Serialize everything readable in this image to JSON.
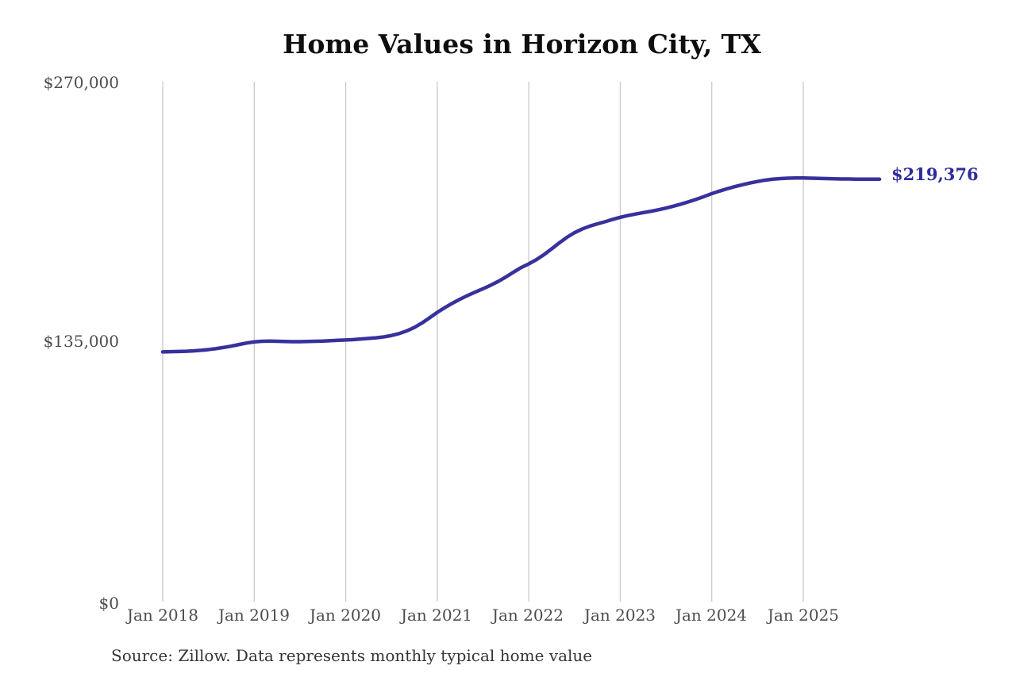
{
  "title": "Home Values in Horizon City, TX",
  "end_label": "$219,376",
  "source_note": "Source: Zillow. Data represents monthly typical home value",
  "y_axis": {
    "ticks": [
      "$270,000",
      "$135,000",
      "$0"
    ]
  },
  "x_axis": {
    "ticks": [
      "Jan 2018",
      "Jan 2019",
      "Jan 2020",
      "Jan 2021",
      "Jan 2022",
      "Jan 2023",
      "Jan 2024",
      "Jan 2025"
    ]
  },
  "colors": {
    "line": "#37319d",
    "end_label": "#2d2c9c",
    "gridline": "#c9c9c9",
    "title": "#0e0e0e",
    "tick_label": "#4f4b4c",
    "source_text": "#383436",
    "background": "#ffffff"
  },
  "chart_data": {
    "type": "line",
    "title": "Home Values in Horizon City, TX",
    "xlabel": "",
    "ylabel": "",
    "ylim": [
      0,
      270000
    ],
    "y_ticks": [
      0,
      135000,
      270000
    ],
    "y_tick_labels": [
      "$0",
      "$135,000",
      "$270,000"
    ],
    "x_tick_labels": [
      "Jan 2018",
      "Jan 2019",
      "Jan 2020",
      "Jan 2021",
      "Jan 2022",
      "Jan 2023",
      "Jan 2024",
      "Jan 2025"
    ],
    "grid": "vertical gridlines at each January, no horizontal gridlines",
    "legend": "none",
    "annotation": {
      "text": "$219,376",
      "attached_to": "last point"
    },
    "series": [
      {
        "name": "Monthly typical home value",
        "x": [
          "2018-01",
          "2018-02",
          "2018-03",
          "2018-04",
          "2018-05",
          "2018-06",
          "2018-07",
          "2018-08",
          "2018-09",
          "2018-10",
          "2018-11",
          "2018-12",
          "2019-01",
          "2019-02",
          "2019-03",
          "2019-04",
          "2019-05",
          "2019-06",
          "2019-07",
          "2019-08",
          "2019-09",
          "2019-10",
          "2019-11",
          "2019-12",
          "2020-01",
          "2020-02",
          "2020-03",
          "2020-04",
          "2020-05",
          "2020-06",
          "2020-07",
          "2020-08",
          "2020-09",
          "2020-10",
          "2020-11",
          "2020-12",
          "2021-01",
          "2021-02",
          "2021-03",
          "2021-04",
          "2021-05",
          "2021-06",
          "2021-07",
          "2021-08",
          "2021-09",
          "2021-10",
          "2021-11",
          "2021-12",
          "2022-01",
          "2022-02",
          "2022-03",
          "2022-04",
          "2022-05",
          "2022-06",
          "2022-07",
          "2022-08",
          "2022-09",
          "2022-10",
          "2022-11",
          "2022-12",
          "2023-01",
          "2023-02",
          "2023-03",
          "2023-04",
          "2023-05",
          "2023-06",
          "2023-07",
          "2023-08",
          "2023-09",
          "2023-10",
          "2023-11",
          "2023-12",
          "2024-01",
          "2024-02",
          "2024-03",
          "2024-04",
          "2024-05",
          "2024-06",
          "2024-07",
          "2024-08",
          "2024-09",
          "2024-10",
          "2024-11",
          "2024-12",
          "2025-01",
          "2025-02",
          "2025-03",
          "2025-04",
          "2025-05",
          "2025-06",
          "2025-07",
          "2025-08",
          "2025-09",
          "2025-10",
          "2025-11"
        ],
        "values": [
          129700,
          129800,
          129900,
          130000,
          130200,
          130500,
          130900,
          131400,
          132000,
          132700,
          133500,
          134300,
          134900,
          135200,
          135300,
          135200,
          135100,
          135000,
          135000,
          135100,
          135200,
          135300,
          135500,
          135700,
          135900,
          136100,
          136400,
          136700,
          137000,
          137500,
          138200,
          139200,
          140600,
          142400,
          144700,
          147400,
          150200,
          152700,
          155000,
          157100,
          159000,
          160800,
          162500,
          164300,
          166300,
          168600,
          171100,
          173500,
          175400,
          177600,
          180200,
          183200,
          186300,
          189200,
          191600,
          193500,
          195000,
          196200,
          197300,
          198500,
          199600,
          200500,
          201300,
          202000,
          202700,
          203500,
          204400,
          205400,
          206500,
          207700,
          209000,
          210400,
          211900,
          213200,
          214400,
          215500,
          216500,
          217400,
          218200,
          218900,
          219400,
          219700,
          219900,
          220000,
          220000,
          219900,
          219800,
          219700,
          219600,
          219500,
          219500,
          219400,
          219400,
          219400,
          219376
        ]
      }
    ]
  }
}
